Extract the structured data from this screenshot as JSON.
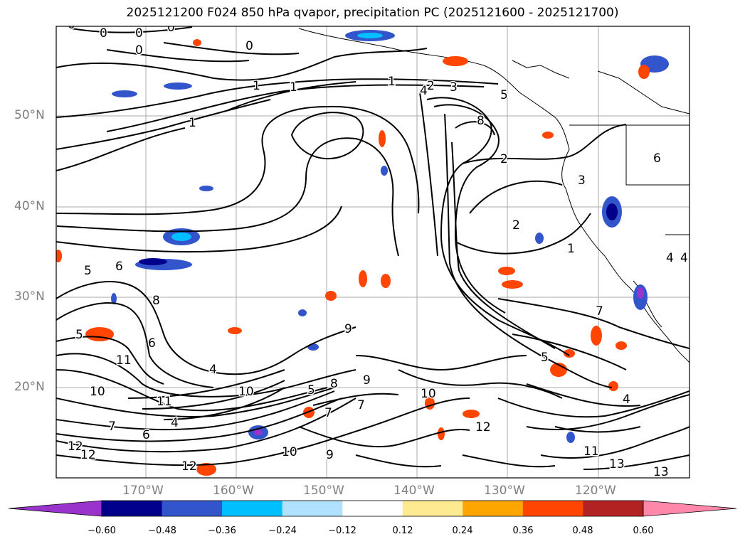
{
  "title": "2025121200 F024 850 hPa qvapor, precipitation PC (2025121600 - 2025121700)",
  "map": {
    "lat_labels": [
      "50°N",
      "40°N",
      "30°N",
      "20°N"
    ],
    "lon_labels": [
      "170°W",
      "160°W",
      "150°W",
      "140°W",
      "130°W",
      "120°W"
    ],
    "contour_labels": [
      {
        "t": "0"
      },
      {
        "t": "0"
      },
      {
        "t": "0"
      },
      {
        "t": "0"
      },
      {
        "t": "0"
      },
      {
        "t": "0"
      },
      {
        "t": "1"
      },
      {
        "t": "1"
      },
      {
        "t": "1"
      },
      {
        "t": "4"
      },
      {
        "t": "2"
      },
      {
        "t": "3"
      },
      {
        "t": "5"
      },
      {
        "t": "8"
      },
      {
        "t": "2"
      },
      {
        "t": "2"
      },
      {
        "t": "3"
      },
      {
        "t": "1"
      },
      {
        "t": "6"
      },
      {
        "t": "6"
      },
      {
        "t": "5"
      },
      {
        "t": "8"
      },
      {
        "t": "9"
      },
      {
        "t": "4"
      },
      {
        "t": "5"
      },
      {
        "t": "6"
      },
      {
        "t": "11"
      },
      {
        "t": "10"
      },
      {
        "t": "11"
      },
      {
        "t": "4"
      },
      {
        "t": "10"
      },
      {
        "t": "7"
      },
      {
        "t": "6"
      },
      {
        "t": "7"
      },
      {
        "t": "8"
      },
      {
        "t": "9"
      },
      {
        "t": "10"
      },
      {
        "t": "5"
      },
      {
        "t": "4"
      },
      {
        "t": "7"
      },
      {
        "t": "12"
      },
      {
        "t": "9"
      },
      {
        "t": "10"
      },
      {
        "t": "12"
      },
      {
        "t": "12"
      },
      {
        "t": "12"
      },
      {
        "t": "11"
      },
      {
        "t": "13"
      },
      {
        "t": "13"
      },
      {
        "t": "1"
      },
      {
        "t": "5"
      },
      {
        "t": "7"
      },
      {
        "t": "4"
      },
      {
        "t": "4"
      }
    ]
  },
  "colorbar": {
    "ticks": [
      "−0.60",
      "−0.48",
      "−0.36",
      "−0.24",
      "−0.12",
      "0.12",
      "0.24",
      "0.36",
      "0.48",
      "0.60"
    ],
    "colors": {
      "under": "#9933cc",
      "bins": [
        "#00008b",
        "#3355cc",
        "#00bfff",
        "#b0e2ff",
        "#ffffff",
        "#ffeb8f",
        "#ffa500",
        "#ff4500",
        "#b22222"
      ],
      "over": "#ff88aa"
    }
  }
}
